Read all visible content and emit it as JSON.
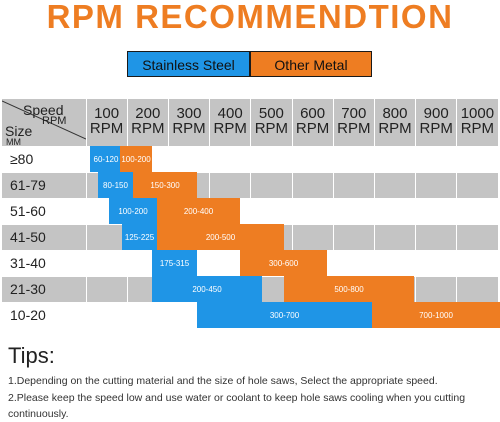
{
  "title": "RPM RECOMMENDTION",
  "legend": {
    "stainless": "Stainless Steel",
    "other": "Other Metal"
  },
  "colors": {
    "blue": "#1f95e6",
    "orange": "#ee7d22",
    "gray": "#c4c4c4",
    "white": "#ffffff"
  },
  "header": {
    "speed_label": "Speed",
    "rpm_label": "RPM",
    "size_label": "Size",
    "mm_label": "MM",
    "columns": [
      {
        "num": "100",
        "unit": "RPM"
      },
      {
        "num": "200",
        "unit": "RPM"
      },
      {
        "num": "300",
        "unit": "RPM"
      },
      {
        "num": "400",
        "unit": "RPM"
      },
      {
        "num": "500",
        "unit": "RPM"
      },
      {
        "num": "600",
        "unit": "RPM"
      },
      {
        "num": "700",
        "unit": "RPM"
      },
      {
        "num": "800",
        "unit": "RPM"
      },
      {
        "num": "900",
        "unit": "RPM"
      },
      {
        "num": "1000",
        "unit": "RPM"
      }
    ]
  },
  "rows": [
    {
      "size": "≥80",
      "stainless": "60-120",
      "other": "100-200"
    },
    {
      "size": "61-79",
      "stainless": "80-150",
      "other": "150-300"
    },
    {
      "size": "51-60",
      "stainless": "100-200",
      "other": "200-400"
    },
    {
      "size": "41-50",
      "stainless": "125-225",
      "other": "200-500"
    },
    {
      "size": "31-40",
      "stainless": "175-315",
      "other": "300-600"
    },
    {
      "size": "21-30",
      "stainless": "200-450",
      "other": "500-800"
    },
    {
      "size": "10-20",
      "stainless": "300-700",
      "other": "700-1000"
    }
  ],
  "tips": {
    "title": "Tips:",
    "items": [
      "1.Depending on the cutting material and the size of hole saws, Select the appropriate speed.",
      "2.Please keep the speed low and use water or coolant to keep hole saws cooling when you cutting continuously."
    ]
  }
}
